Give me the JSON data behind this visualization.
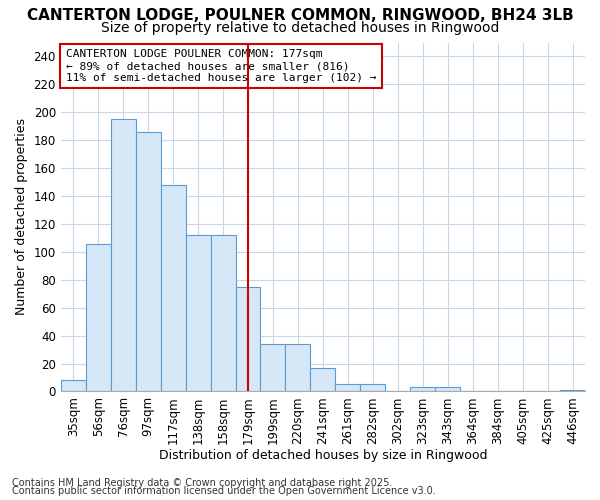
{
  "title": "CANTERTON LODGE, POULNER COMMON, RINGWOOD, BH24 3LB",
  "subtitle": "Size of property relative to detached houses in Ringwood",
  "xlabel": "Distribution of detached houses by size in Ringwood",
  "ylabel": "Number of detached properties",
  "categories": [
    "35sqm",
    "56sqm",
    "76sqm",
    "97sqm",
    "117sqm",
    "138sqm",
    "158sqm",
    "179sqm",
    "199sqm",
    "220sqm",
    "241sqm",
    "261sqm",
    "282sqm",
    "302sqm",
    "323sqm",
    "343sqm",
    "364sqm",
    "384sqm",
    "405sqm",
    "425sqm",
    "446sqm"
  ],
  "values": [
    8,
    106,
    195,
    186,
    148,
    112,
    112,
    75,
    34,
    34,
    17,
    5,
    5,
    0,
    3,
    3,
    0,
    0,
    0,
    0,
    1
  ],
  "bar_color": "#d6e8f7",
  "bar_edge_color": "#5b9bd5",
  "vline_x_index": 7,
  "vline_color": "#cc0000",
  "ylim": [
    0,
    250
  ],
  "yticks": [
    0,
    20,
    40,
    60,
    80,
    100,
    120,
    140,
    160,
    180,
    200,
    220,
    240
  ],
  "legend_title": "CANTERTON LODGE POULNER COMMON: 177sqm",
  "legend_line1": "← 89% of detached houses are smaller (816)",
  "legend_line2": "11% of semi-detached houses are larger (102) →",
  "legend_edge_color": "#cc0000",
  "footnote1": "Contains HM Land Registry data © Crown copyright and database right 2025.",
  "footnote2": "Contains public sector information licensed under the Open Government Licence v3.0.",
  "background_color": "#ffffff",
  "grid_color": "#c8d8e8",
  "title_fontsize": 11,
  "subtitle_fontsize": 10,
  "axis_label_fontsize": 9,
  "tick_fontsize": 8.5,
  "legend_fontsize": 8,
  "footnote_fontsize": 7
}
